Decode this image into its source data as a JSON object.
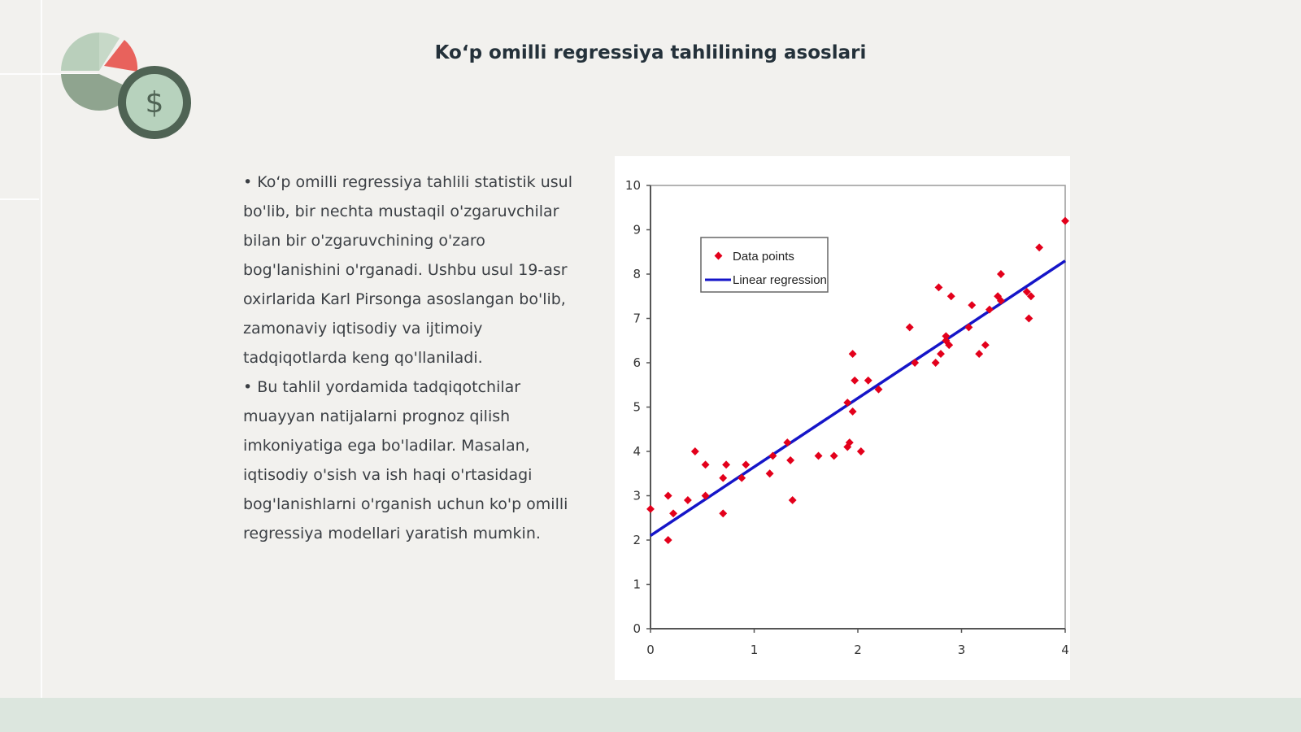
{
  "slide": {
    "title": "Ko‘p omilli regressiya tahlilining asoslari",
    "paragraphs": [
      "• Ko‘p omilli regressiya tahlili statistik usul bo'lib, bir nechta mustaqil o'zgaruvchilar bilan bir o'zgaruvchining o'zaro bog'lanishini o'rganadi. Ushbu usul 19-asr oxirlarida Karl Pirsonga asoslangan bo'lib, zamonaviy iqtisodiy va ijtimoiy tadqiqotlarda keng qo'llaniladi.",
      "• Bu tahlil yordamida tadqiqotchilar muayyan natijalarni prognoz qilish imkoniyatiga ega bo'ladilar. Masalan, iqtisodiy o'sish va ish haqi o'rtasidagi bog'lanishlarni o'rganish uchun ko'p omilli regressiya modellari yaratish mumkin."
    ],
    "logo": {
      "symbol": "$",
      "icon": "pie-chart-dollar-coin-icon"
    }
  },
  "colors": {
    "background": "#f2f1ee",
    "title": "#24313a",
    "points": "#e3001b",
    "regression_line": "#1515c8",
    "logo_green_light": "#b9cfbb",
    "logo_green_dark": "#8fa48f",
    "logo_red": "#e8625c",
    "coin_outer": "#4f6354",
    "coin_inner": "#b7d2bd"
  },
  "chart_data": {
    "type": "scatter",
    "xlim": [
      0,
      4
    ],
    "ylim": [
      0,
      10
    ],
    "xticks": [
      "0",
      "1",
      "2",
      "3",
      "4"
    ],
    "yticks": [
      "0",
      "1",
      "2",
      "3",
      "4",
      "5",
      "6",
      "7",
      "8",
      "9",
      "10"
    ],
    "grid": false,
    "legend": {
      "placement": "top-left",
      "entries": [
        "Data points",
        "Linear regression"
      ]
    },
    "series": [
      {
        "name": "Data points",
        "type": "scatter",
        "points": [
          [
            0.0,
            2.7
          ],
          [
            0.17,
            2.0
          ],
          [
            0.17,
            3.0
          ],
          [
            0.22,
            2.6
          ],
          [
            0.36,
            2.9
          ],
          [
            0.43,
            4.0
          ],
          [
            0.53,
            3.0
          ],
          [
            0.53,
            3.7
          ],
          [
            0.7,
            2.6
          ],
          [
            0.7,
            3.4
          ],
          [
            0.73,
            3.7
          ],
          [
            0.88,
            3.4
          ],
          [
            0.92,
            3.7
          ],
          [
            1.15,
            3.5
          ],
          [
            1.18,
            3.9
          ],
          [
            1.32,
            4.2
          ],
          [
            1.35,
            3.8
          ],
          [
            1.37,
            2.9
          ],
          [
            1.62,
            3.9
          ],
          [
            1.77,
            3.9
          ],
          [
            1.9,
            4.1
          ],
          [
            1.92,
            4.2
          ],
          [
            1.9,
            5.1
          ],
          [
            1.95,
            4.9
          ],
          [
            1.95,
            6.2
          ],
          [
            1.97,
            5.6
          ],
          [
            2.03,
            4.0
          ],
          [
            2.1,
            5.6
          ],
          [
            2.2,
            5.4
          ],
          [
            2.5,
            6.8
          ],
          [
            2.55,
            6.0
          ],
          [
            2.75,
            6.0
          ],
          [
            2.78,
            7.7
          ],
          [
            2.8,
            6.2
          ],
          [
            2.85,
            6.5
          ],
          [
            2.85,
            6.6
          ],
          [
            2.88,
            6.4
          ],
          [
            2.9,
            7.5
          ],
          [
            3.07,
            6.8
          ],
          [
            3.1,
            7.3
          ],
          [
            3.17,
            6.2
          ],
          [
            3.23,
            6.4
          ],
          [
            3.27,
            7.2
          ],
          [
            3.35,
            7.5
          ],
          [
            3.38,
            7.4
          ],
          [
            3.38,
            8.0
          ],
          [
            3.63,
            7.6
          ],
          [
            3.65,
            7.0
          ],
          [
            3.67,
            7.5
          ],
          [
            3.75,
            8.6
          ],
          [
            4.0,
            9.2
          ]
        ]
      },
      {
        "name": "Linear regression",
        "type": "line",
        "x": [
          0,
          4
        ],
        "y": [
          2.1,
          8.3
        ]
      }
    ]
  }
}
